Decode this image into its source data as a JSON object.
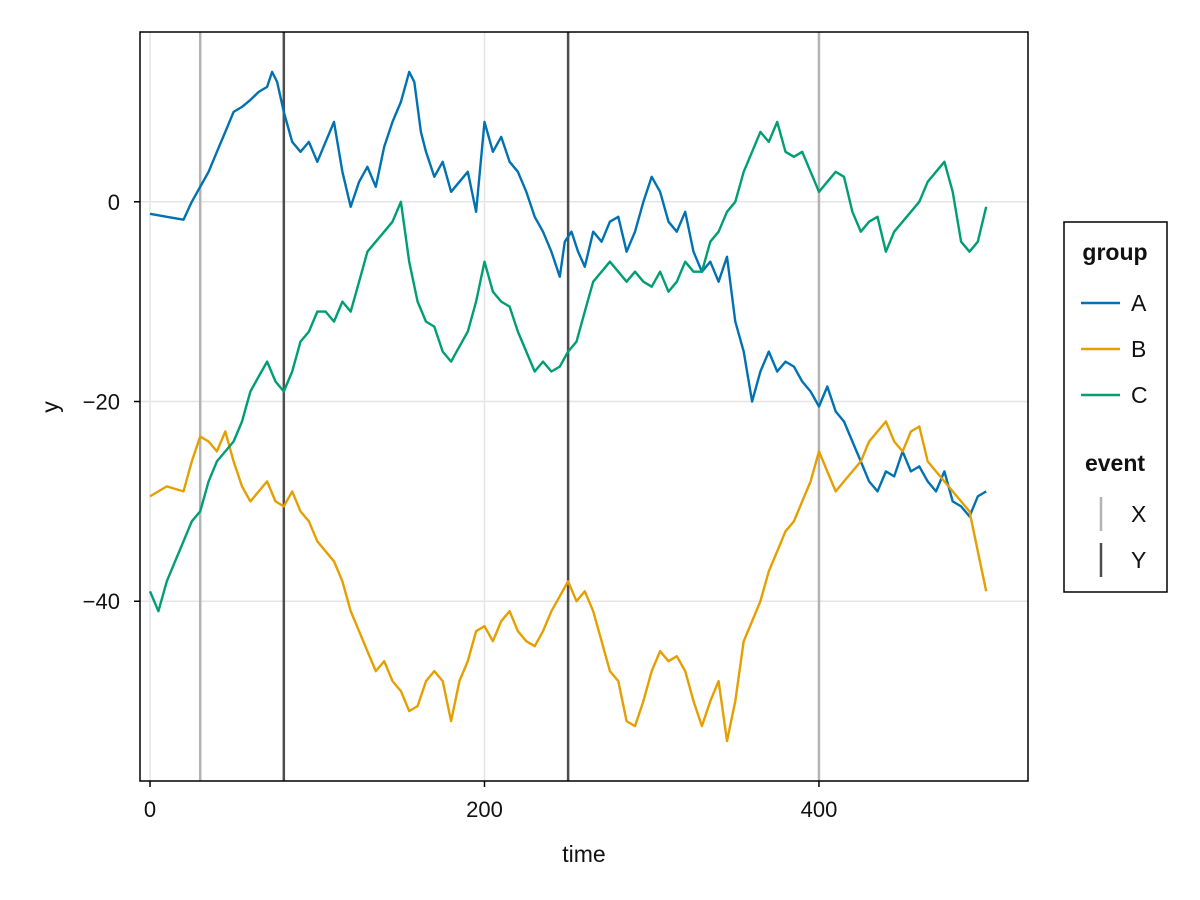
{
  "chart_data": {
    "type": "line",
    "title": "",
    "xlabel": "time",
    "ylabel": "y",
    "xlim": [
      -6,
      525
    ],
    "ylim": [
      -58,
      17
    ],
    "x_ticks": [
      0,
      200,
      400
    ],
    "y_ticks": [
      0,
      -20,
      -40
    ],
    "x_tick_labels": [
      "0",
      "200",
      "400"
    ],
    "y_tick_labels": [
      "0",
      "−20",
      "−40"
    ],
    "grid": true,
    "legend_position": "right",
    "legend_groups": [
      {
        "title": "group",
        "kind": "line",
        "entries": [
          "A",
          "B",
          "C"
        ]
      },
      {
        "title": "event",
        "kind": "vline",
        "entries": [
          "X",
          "Y"
        ]
      }
    ],
    "series": [
      {
        "name": "A",
        "color": "#0072B2",
        "x": [
          0,
          10,
          20,
          25,
          30,
          35,
          40,
          45,
          50,
          55,
          60,
          65,
          70,
          73,
          76,
          80,
          85,
          90,
          95,
          100,
          105,
          110,
          115,
          120,
          125,
          130,
          135,
          140,
          145,
          150,
          155,
          158,
          162,
          165,
          170,
          175,
          180,
          185,
          190,
          195,
          200,
          205,
          210,
          215,
          220,
          225,
          230,
          235,
          240,
          245,
          248,
          252,
          256,
          260,
          265,
          270,
          275,
          280,
          285,
          290,
          295,
          300,
          305,
          310,
          315,
          320,
          325,
          330,
          335,
          340,
          345,
          350,
          355,
          360,
          365,
          370,
          375,
          380,
          385,
          390,
          395,
          400,
          405,
          410,
          415,
          420,
          425,
          430,
          435,
          440,
          445,
          450,
          455,
          460,
          465,
          470,
          475,
          480,
          485,
          490,
          495,
          500
        ],
        "y": [
          -1.2,
          -1.5,
          -1.8,
          0,
          1.5,
          3,
          5,
          7,
          9,
          9.5,
          10.2,
          11,
          11.5,
          13,
          12,
          9,
          6,
          5,
          6,
          4,
          6,
          8,
          3,
          -0.5,
          2,
          3.5,
          1.5,
          5.5,
          8,
          10,
          13,
          12,
          7,
          5,
          2.5,
          4,
          1,
          2,
          3,
          -1,
          8,
          5,
          6.5,
          4,
          3,
          1,
          -1.5,
          -3,
          -5,
          -7.5,
          -4,
          -3,
          -5,
          -6.5,
          -3,
          -4,
          -2,
          -1.5,
          -5,
          -3,
          0,
          2.5,
          1,
          -2,
          -3,
          -1,
          -5,
          -7,
          -6,
          -8,
          -5.5,
          -12,
          -15,
          -20,
          -17,
          -15,
          -17,
          -16,
          -16.5,
          -18,
          -19,
          -20.5,
          -18.5,
          -21,
          -22,
          -24,
          -26,
          -28,
          -29,
          -27,
          -27.5,
          -25,
          -27,
          -26.5,
          -28,
          -29,
          -27,
          -30,
          -30.5,
          -31.5,
          -29.5,
          -29
        ]
      },
      {
        "name": "B",
        "color": "#E69F00",
        "x": [
          0,
          10,
          20,
          25,
          30,
          35,
          40,
          45,
          50,
          55,
          60,
          65,
          70,
          75,
          80,
          85,
          90,
          95,
          100,
          105,
          110,
          115,
          120,
          125,
          130,
          135,
          140,
          145,
          150,
          155,
          160,
          165,
          170,
          175,
          180,
          185,
          190,
          195,
          200,
          205,
          210,
          215,
          220,
          225,
          230,
          235,
          240,
          245,
          250,
          255,
          260,
          265,
          270,
          275,
          280,
          285,
          290,
          295,
          300,
          305,
          310,
          315,
          320,
          325,
          330,
          335,
          340,
          345,
          350,
          355,
          360,
          365,
          370,
          375,
          380,
          385,
          390,
          395,
          400,
          405,
          410,
          415,
          420,
          425,
          430,
          435,
          440,
          445,
          450,
          455,
          460,
          465,
          470,
          475,
          480,
          485,
          490,
          495,
          500
        ],
        "y": [
          -29.5,
          -28.5,
          -29,
          -26,
          -23.5,
          -24,
          -25,
          -23,
          -26,
          -28.5,
          -30,
          -29,
          -28,
          -30,
          -30.5,
          -29,
          -31,
          -32,
          -34,
          -35,
          -36,
          -38,
          -41,
          -43,
          -45,
          -47,
          -46,
          -48,
          -49,
          -51,
          -50.5,
          -48,
          -47,
          -48,
          -52,
          -48,
          -46,
          -43,
          -42.5,
          -44,
          -42,
          -41,
          -43,
          -44,
          -44.5,
          -43,
          -41,
          -39.5,
          -38,
          -40,
          -39,
          -41,
          -44,
          -47,
          -48,
          -52,
          -52.5,
          -50,
          -47,
          -45,
          -46,
          -45.5,
          -47,
          -50,
          -52.5,
          -50,
          -48,
          -54,
          -50,
          -44,
          -42,
          -40,
          -37,
          -35,
          -33,
          -32,
          -30,
          -28,
          -25,
          -27,
          -29,
          -28,
          -27,
          -26,
          -24,
          -23,
          -22,
          -24,
          -25,
          -23,
          -22.5,
          -26,
          -27,
          -28,
          -29,
          -30,
          -31,
          -35,
          -39
        ]
      },
      {
        "name": "C",
        "color": "#009E73",
        "x": [
          0,
          5,
          10,
          15,
          20,
          25,
          30,
          35,
          40,
          45,
          50,
          55,
          60,
          65,
          70,
          75,
          80,
          85,
          90,
          95,
          100,
          105,
          110,
          115,
          120,
          125,
          130,
          135,
          140,
          145,
          150,
          155,
          160,
          165,
          170,
          175,
          180,
          185,
          190,
          195,
          200,
          205,
          210,
          215,
          220,
          225,
          230,
          235,
          240,
          245,
          250,
          255,
          260,
          265,
          270,
          275,
          280,
          285,
          290,
          295,
          300,
          305,
          310,
          315,
          320,
          325,
          330,
          335,
          340,
          345,
          350,
          355,
          360,
          365,
          370,
          375,
          380,
          385,
          390,
          395,
          400,
          405,
          410,
          415,
          420,
          425,
          430,
          435,
          440,
          445,
          450,
          455,
          460,
          465,
          470,
          475,
          480,
          485,
          490,
          495,
          500
        ],
        "y": [
          -39,
          -41,
          -38,
          -36,
          -34,
          -32,
          -31,
          -28,
          -26,
          -25,
          -24,
          -22,
          -19,
          -17.5,
          -16,
          -18,
          -19,
          -17,
          -14,
          -13,
          -11,
          -11,
          -12,
          -10,
          -11,
          -8,
          -5,
          -4,
          -3,
          -2,
          0,
          -6,
          -10,
          -12,
          -12.5,
          -15,
          -16,
          -14.5,
          -13,
          -10,
          -6,
          -9,
          -10,
          -10.5,
          -13,
          -15,
          -17,
          -16,
          -17,
          -16.5,
          -15,
          -14,
          -11,
          -8,
          -7,
          -6,
          -7,
          -8,
          -7,
          -8,
          -8.5,
          -7,
          -9,
          -8,
          -6,
          -7,
          -7,
          -4,
          -3,
          -1,
          0,
          3,
          5,
          7,
          6,
          8,
          5,
          4.5,
          5,
          3,
          1,
          2,
          3,
          2.5,
          -1,
          -3,
          -2,
          -1.5,
          -5,
          -3,
          -2,
          -1,
          0,
          2,
          3,
          4,
          1,
          -4,
          -5,
          -4,
          -0.5
        ]
      }
    ],
    "vlines": [
      {
        "x": 30,
        "group": "X",
        "color": "#b3b3b3"
      },
      {
        "x": 80,
        "group": "Y",
        "color": "#4d4d4d"
      },
      {
        "x": 250,
        "group": "Y",
        "color": "#4d4d4d"
      },
      {
        "x": 400,
        "group": "X",
        "color": "#b3b3b3"
      }
    ]
  }
}
